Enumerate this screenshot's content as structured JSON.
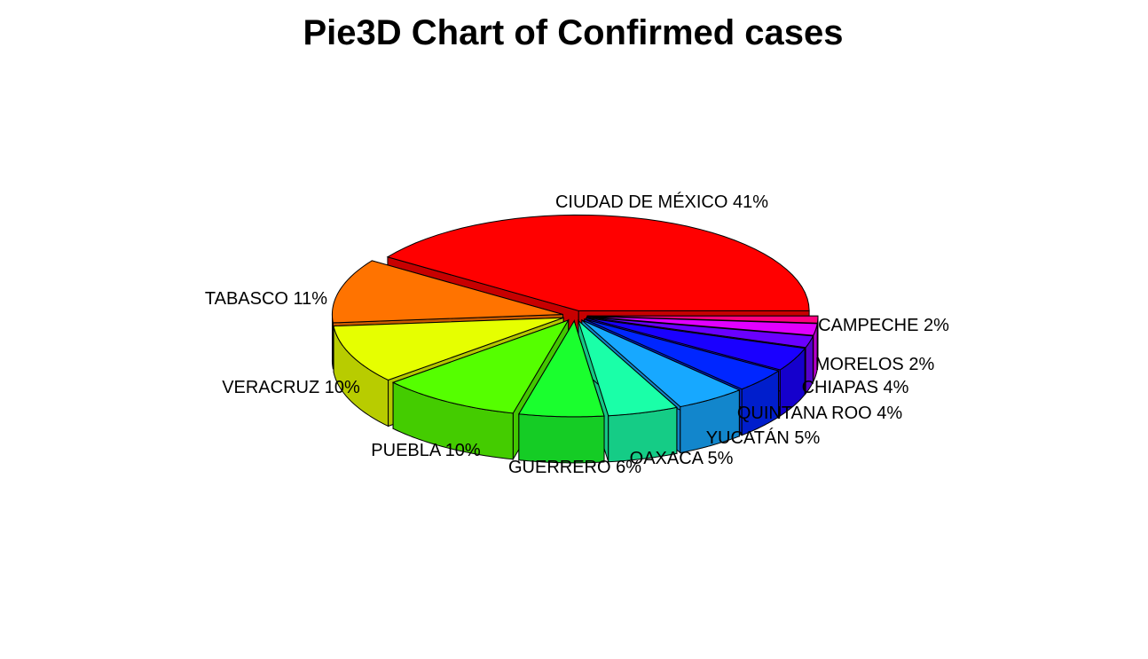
{
  "chart_data": {
    "type": "pie",
    "title": "Pie3D Chart of Confirmed cases",
    "slices": [
      {
        "label": "CIUDAD DE MÉXICO",
        "percent": 41,
        "color": "#FF0000"
      },
      {
        "label": "TABASCO",
        "percent": 11,
        "color": "#FF7300"
      },
      {
        "label": "VERACRUZ",
        "percent": 10,
        "color": "#E6FF00"
      },
      {
        "label": "PUEBLA",
        "percent": 10,
        "color": "#55FF00"
      },
      {
        "label": "GUERRERO",
        "percent": 6,
        "color": "#1AFF2E"
      },
      {
        "label": "OAXACA",
        "percent": 5,
        "color": "#1AFFA8"
      },
      {
        "label": "YUCATÁN",
        "percent": 5,
        "color": "#17A8FF"
      },
      {
        "label": "QUINTANA ROO",
        "percent": 4,
        "color": "#0026FF"
      },
      {
        "label": "CHIAPAS",
        "percent": 4,
        "color": "#1A00FF"
      },
      {
        "label": "MORELOS",
        "percent": 2,
        "color": "#6A00FF"
      },
      {
        "label": "CAMPECHE",
        "percent": 2,
        "color": "#E100FF"
      }
    ],
    "extra_colors": [
      "#FF0080"
    ],
    "legend": "none"
  }
}
